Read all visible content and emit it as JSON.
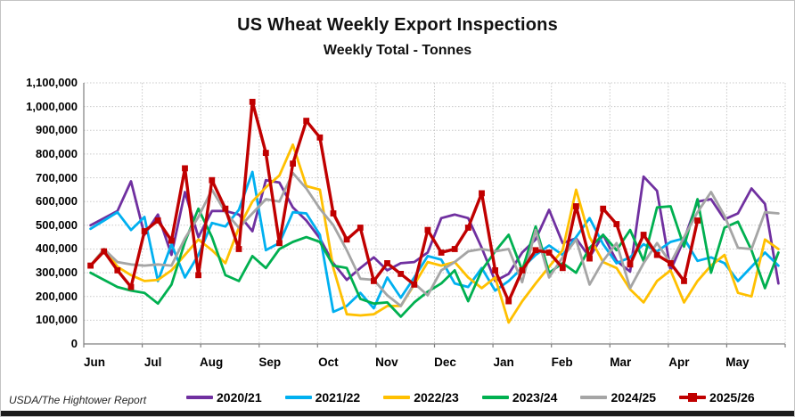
{
  "title": "US Wheat Weekly Export Inspections",
  "subtitle": "Weekly Total - Tonnes",
  "source": "USDA/The Hightower Report",
  "chart_data": {
    "type": "line",
    "title": "US Wheat Weekly Export Inspections",
    "subtitle": "Weekly Total - Tonnes",
    "unit": "tonnes",
    "points_per_year": 52,
    "grid": true,
    "legend_position": "bottom",
    "x_axis": {
      "label": "",
      "tick_labels": [
        "Jun",
        "Jul",
        "Aug",
        "Sep",
        "Oct",
        "Nov",
        "Dec",
        "Jan",
        "Feb",
        "Mar",
        "Apr",
        "May"
      ]
    },
    "y_axis": {
      "label": "",
      "min": 0,
      "max": 1100000,
      "step": 100000,
      "tick_labels": [
        "1,100,000",
        "1,000,000",
        "900,000",
        "800,000",
        "700,000",
        "600,000",
        "500,000",
        "400,000",
        "300,000",
        "200,000",
        "100,000",
        "0"
      ]
    },
    "series": [
      {
        "name": "2020/21",
        "color": "#7030A0",
        "marker": "none",
        "values": [
          500000,
          530000,
          560000,
          685000,
          460000,
          545000,
          375000,
          640000,
          450000,
          560000,
          560000,
          545000,
          475000,
          690000,
          680000,
          575000,
          520000,
          445000,
          340000,
          270000,
          320000,
          365000,
          310000,
          340000,
          345000,
          385000,
          530000,
          545000,
          530000,
          405000,
          265000,
          295000,
          385000,
          440000,
          565000,
          425000,
          445000,
          365000,
          460000,
          350000,
          305000,
          705000,
          645000,
          310000,
          440000,
          600000,
          610000,
          525000,
          550000,
          655000,
          590000,
          255000
        ]
      },
      {
        "name": "2021/22",
        "color": "#00B0F0",
        "marker": "none",
        "values": [
          485000,
          520000,
          555000,
          480000,
          535000,
          265000,
          420000,
          280000,
          375000,
          510000,
          495000,
          565000,
          725000,
          395000,
          425000,
          555000,
          550000,
          460000,
          135000,
          160000,
          215000,
          150000,
          280000,
          195000,
          280000,
          370000,
          355000,
          255000,
          240000,
          320000,
          225000,
          265000,
          320000,
          375000,
          415000,
          375000,
          450000,
          530000,
          420000,
          340000,
          365000,
          420000,
          390000,
          430000,
          445000,
          350000,
          365000,
          340000,
          265000,
          325000,
          385000,
          330000
        ]
      },
      {
        "name": "2022/23",
        "color": "#FFC000",
        "marker": "none",
        "values": [
          330000,
          400000,
          325000,
          290000,
          265000,
          270000,
          310000,
          375000,
          440000,
          395000,
          340000,
          490000,
          600000,
          660000,
          710000,
          840000,
          665000,
          650000,
          320000,
          125000,
          120000,
          125000,
          160000,
          160000,
          250000,
          345000,
          330000,
          345000,
          280000,
          235000,
          280000,
          90000,
          180000,
          255000,
          325000,
          395000,
          650000,
          450000,
          345000,
          320000,
          230000,
          175000,
          265000,
          310000,
          175000,
          265000,
          330000,
          375000,
          215000,
          200000,
          440000,
          400000
        ]
      },
      {
        "name": "2023/24",
        "color": "#00B050",
        "marker": "none",
        "values": [
          300000,
          270000,
          240000,
          225000,
          215000,
          170000,
          250000,
          430000,
          570000,
          450000,
          290000,
          265000,
          370000,
          320000,
          400000,
          430000,
          450000,
          430000,
          330000,
          320000,
          190000,
          170000,
          175000,
          115000,
          175000,
          220000,
          255000,
          310000,
          180000,
          310000,
          390000,
          460000,
          310000,
          495000,
          300000,
          340000,
          300000,
          405000,
          460000,
          395000,
          480000,
          350000,
          575000,
          580000,
          410000,
          610000,
          300000,
          490000,
          515000,
          395000,
          235000,
          385000
        ]
      },
      {
        "name": "2024/25",
        "color": "#A5A5A5",
        "marker": "none",
        "values": [
          330000,
          400000,
          345000,
          335000,
          330000,
          335000,
          330000,
          445000,
          535000,
          650000,
          555000,
          490000,
          550000,
          610000,
          600000,
          720000,
          655000,
          570000,
          500000,
          395000,
          275000,
          270000,
          205000,
          160000,
          255000,
          205000,
          310000,
          345000,
          390000,
          400000,
          390000,
          400000,
          260000,
          480000,
          280000,
          365000,
          440000,
          250000,
          350000,
          425000,
          235000,
          340000,
          425000,
          340000,
          450000,
          555000,
          640000,
          540000,
          405000,
          400000,
          555000,
          550000
        ]
      },
      {
        "name": "2025/26",
        "color": "#C00000",
        "marker": "square",
        "values": [
          330000,
          390000,
          310000,
          240000,
          475000,
          520000,
          435000,
          740000,
          290000,
          690000,
          570000,
          400000,
          1020000,
          805000,
          425000,
          760000,
          940000,
          870000,
          550000,
          440000,
          490000,
          265000,
          340000,
          295000,
          250000,
          480000,
          385000,
          400000,
          490000,
          635000,
          310000,
          180000,
          310000,
          395000,
          385000,
          320000,
          580000,
          360000,
          570000,
          505000,
          335000,
          460000,
          375000,
          340000,
          265000,
          520000
        ]
      }
    ]
  }
}
